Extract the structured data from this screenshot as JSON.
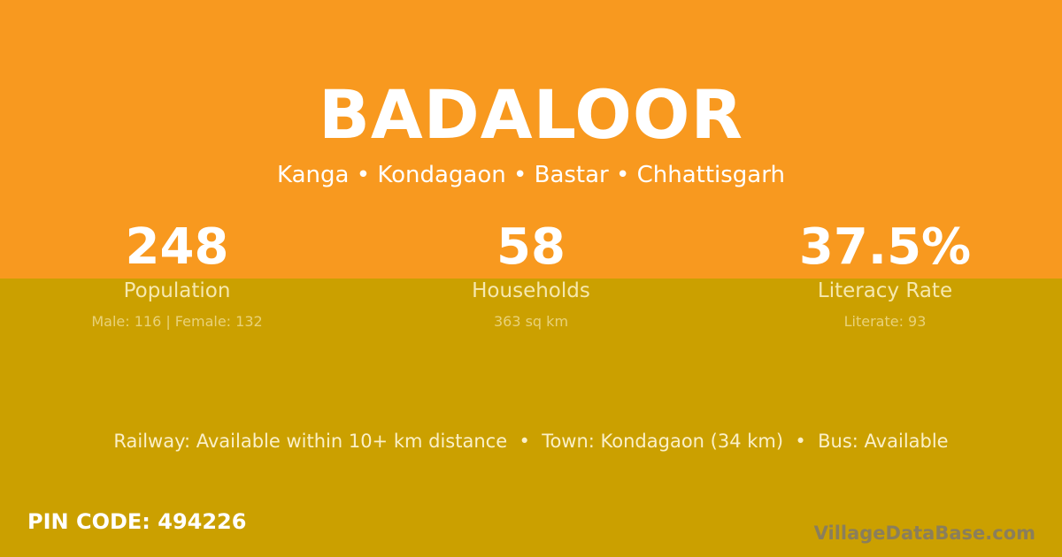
{
  "title": "BADALOOR",
  "location": "Kanga • Kondagaon • Bastar • Chhattisgarh",
  "stats": [
    {
      "value": "248",
      "label": "Population",
      "detail": "Male: 116 | Female: 132"
    },
    {
      "value": "58",
      "label": "Households",
      "detail": "363 sq km"
    },
    {
      "value": "37.5%",
      "label": "Literacy Rate",
      "detail": "Literate: 93"
    }
  ],
  "connectivity": "Railway: Available within 10+ km distance  •  Town: Kondagaon (34 km)  •  Bus: Available",
  "pin_code": "PIN CODE: 494226",
  "brand": "VillageDataBase.com",
  "colors": {
    "top": "#F8991F",
    "bottom": "#CBA000"
  }
}
